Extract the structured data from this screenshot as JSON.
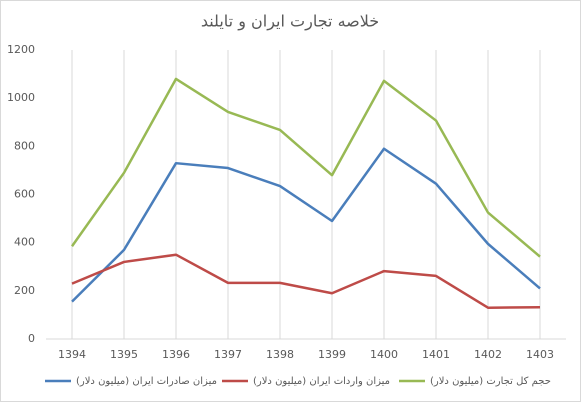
{
  "chart_data": {
    "type": "line",
    "title": "خلاصه تجارت ایران و تایلند",
    "categories": [
      "1394",
      "1395",
      "1396",
      "1397",
      "1398",
      "1399",
      "1400",
      "1401",
      "1402",
      "1403"
    ],
    "series": [
      {
        "name": "میزان صادرات ایران (میلیون دلار)",
        "color": "#4a7ebb",
        "values": [
          155,
          370,
          730,
          710,
          635,
          490,
          790,
          645,
          395,
          210
        ]
      },
      {
        "name": "میزان واردات ایران (میلیون دلار)",
        "color": "#be4b48",
        "values": [
          230,
          320,
          350,
          233,
          233,
          190,
          282,
          262,
          130,
          132
        ]
      },
      {
        "name": "حجم کل تجارت (میلیون دلار)",
        "color": "#98b954",
        "values": [
          385,
          690,
          1080,
          943,
          868,
          680,
          1072,
          907,
          525,
          342
        ]
      }
    ],
    "ylim": [
      0,
      1200
    ],
    "yticks": [
      0,
      200,
      400,
      600,
      800,
      1000,
      1200
    ],
    "xgrid": true,
    "legend": "bottom"
  }
}
